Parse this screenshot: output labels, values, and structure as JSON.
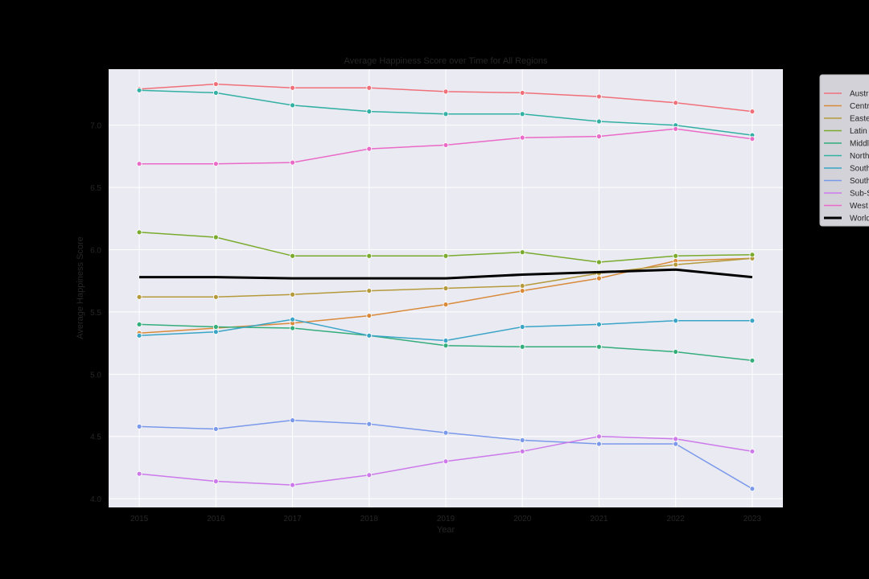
{
  "chart_data": {
    "type": "line",
    "title": "Average Happiness Score over Time for All Regions",
    "xlabel": "Year",
    "ylabel": "Average Happiness Score",
    "x": [
      2015,
      2016,
      2017,
      2018,
      2019,
      2020,
      2021,
      2022,
      2023
    ],
    "xlim": [
      2014.6,
      2023.4
    ],
    "ylim": [
      3.93,
      7.45
    ],
    "yticks": [
      4.0,
      4.5,
      5.0,
      5.5,
      6.0,
      6.5,
      7.0
    ],
    "ytick_labels": [
      "4.0",
      "4.5",
      "5.0",
      "5.5",
      "6.0",
      "6.5",
      "7.0"
    ],
    "xtick_labels": [
      "2015",
      "2016",
      "2017",
      "2018",
      "2019",
      "2020",
      "2021",
      "2022",
      "2023"
    ],
    "grid": true,
    "legend_position": "outside top-right",
    "series": [
      {
        "name": "Austr",
        "color": "#f0707a",
        "values": [
          7.29,
          7.33,
          7.3,
          7.3,
          7.27,
          7.26,
          7.23,
          7.18,
          7.11
        ]
      },
      {
        "name": "Centr",
        "color": "#d98a3a",
        "values": [
          5.33,
          5.37,
          5.41,
          5.47,
          5.56,
          5.67,
          5.77,
          5.91,
          5.93
        ]
      },
      {
        "name": "Easte",
        "color": "#b59a3c",
        "values": [
          5.62,
          5.62,
          5.64,
          5.67,
          5.69,
          5.71,
          5.81,
          5.88,
          5.93
        ]
      },
      {
        "name": "Latin",
        "color": "#7aab2e",
        "values": [
          6.14,
          6.1,
          5.95,
          5.95,
          5.95,
          5.98,
          5.9,
          5.95,
          5.96
        ]
      },
      {
        "name": "Middl",
        "color": "#33ad7a",
        "values": [
          5.4,
          5.38,
          5.37,
          5.31,
          5.23,
          5.22,
          5.22,
          5.18,
          5.11
        ]
      },
      {
        "name": "North",
        "color": "#33b0a4",
        "values": [
          7.28,
          7.26,
          7.16,
          7.11,
          7.09,
          7.09,
          7.03,
          7.0,
          6.92
        ]
      },
      {
        "name": "South",
        "color": "#3aa5c7",
        "values": [
          5.31,
          5.34,
          5.44,
          5.31,
          5.27,
          5.38,
          5.4,
          5.43,
          5.43
        ]
      },
      {
        "name": "South",
        "color": "#7b99ea",
        "values": [
          4.58,
          4.56,
          4.63,
          4.6,
          4.53,
          4.47,
          4.44,
          4.44,
          4.08
        ]
      },
      {
        "name": "Sub-S",
        "color": "#cc79ea",
        "values": [
          4.2,
          4.14,
          4.11,
          4.19,
          4.3,
          4.38,
          4.5,
          4.48,
          4.38
        ]
      },
      {
        "name": "West",
        "color": "#ea6ac7",
        "values": [
          6.69,
          6.69,
          6.7,
          6.81,
          6.84,
          6.9,
          6.91,
          6.97,
          6.89
        ]
      },
      {
        "name": "World",
        "color": "#000000",
        "bold": true,
        "values": [
          5.78,
          5.78,
          5.77,
          5.77,
          5.77,
          5.8,
          5.82,
          5.84,
          5.78
        ]
      }
    ]
  }
}
